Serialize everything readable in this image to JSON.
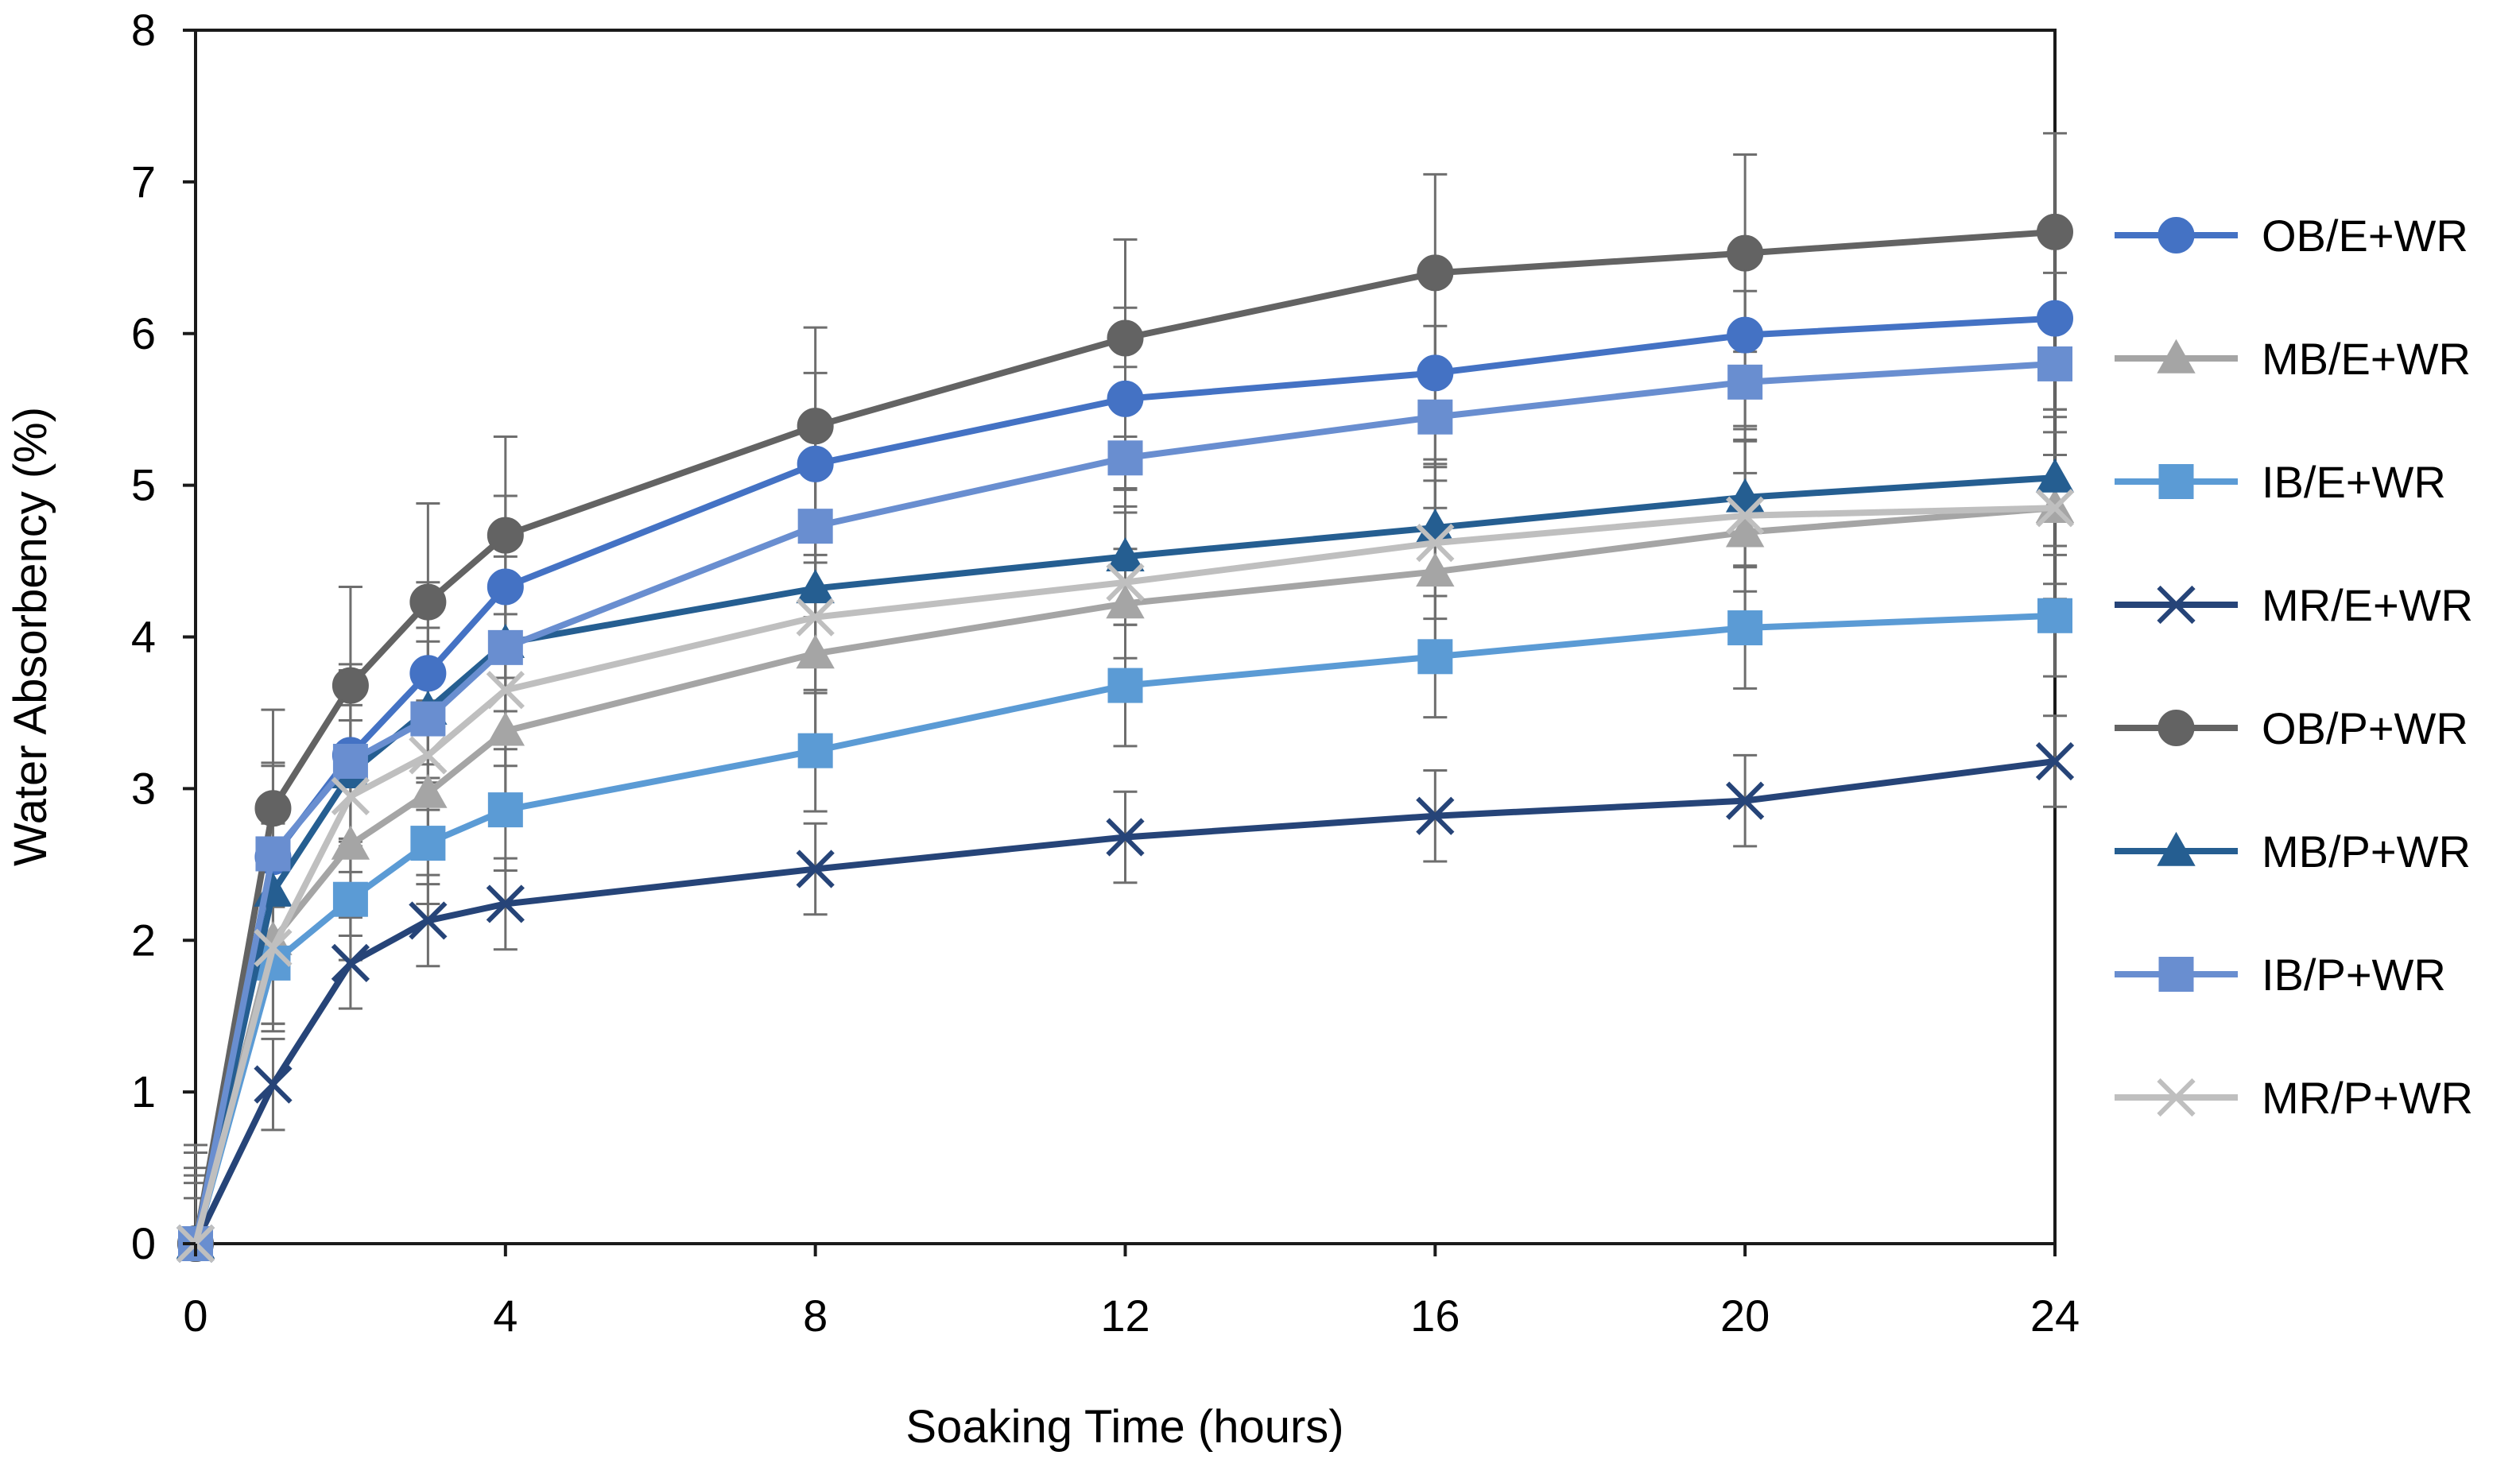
{
  "chart_data": {
    "type": "line",
    "title": "",
    "xlabel": "Soaking Time (hours)",
    "ylabel": "Water Absorbency (%)",
    "x": [
      0,
      1,
      2,
      3,
      4,
      8,
      12,
      16,
      20,
      24
    ],
    "xticks": [
      "0",
      "4",
      "8",
      "12",
      "16",
      "20",
      "24"
    ],
    "xtick_values": [
      0,
      4,
      8,
      12,
      16,
      20,
      24
    ],
    "yticks": [
      "0",
      "1",
      "2",
      "3",
      "4",
      "5",
      "6",
      "7",
      "8"
    ],
    "ytick_values": [
      0,
      1,
      2,
      3,
      4,
      5,
      6,
      7,
      8
    ],
    "xlim": [
      0,
      24
    ],
    "ylim": [
      0,
      8
    ],
    "grid": false,
    "legend_position": "right",
    "error_bars": true,
    "series": [
      {
        "name": "OB/E+WR",
        "color": "#4472C4",
        "marker": "circle",
        "values": [
          0,
          2.55,
          3.22,
          3.76,
          4.33,
          5.14,
          5.57,
          5.74,
          5.99,
          6.1
        ],
        "errors": [
          0.6,
          0.6,
          0.6,
          0.6,
          0.6,
          0.6,
          0.6,
          0.6,
          0.6,
          0.6
        ]
      },
      {
        "name": "MB/E+WR",
        "color": "#A5A5A5",
        "marker": "triangle",
        "values": [
          0,
          2.0,
          2.63,
          2.97,
          3.38,
          3.89,
          4.22,
          4.43,
          4.69,
          4.85
        ],
        "errors": [
          0.6,
          0.6,
          0.6,
          0.6,
          0.6,
          0.6,
          0.6,
          0.6,
          0.6,
          0.6
        ]
      },
      {
        "name": "IB/E+WR",
        "color": "#5B9BD5",
        "marker": "square",
        "values": [
          0,
          1.85,
          2.27,
          2.64,
          2.86,
          3.25,
          3.68,
          3.87,
          4.06,
          4.14
        ],
        "errors": [
          0.4,
          0.4,
          0.4,
          0.4,
          0.4,
          0.4,
          0.4,
          0.4,
          0.4,
          0.4
        ]
      },
      {
        "name": "MR/E+WR",
        "color": "#264478",
        "marker": "x",
        "values": [
          0,
          1.05,
          1.85,
          2.13,
          2.24,
          2.47,
          2.68,
          2.82,
          2.92,
          3.18
        ],
        "errors": [
          0.3,
          0.3,
          0.3,
          0.3,
          0.3,
          0.3,
          0.3,
          0.3,
          0.3,
          0.3
        ]
      },
      {
        "name": "OB/P+WR",
        "color": "#636363",
        "marker": "circle",
        "values": [
          0,
          2.87,
          3.68,
          4.23,
          4.67,
          5.39,
          5.97,
          6.4,
          6.53,
          6.67
        ],
        "errors": [
          0.65,
          0.65,
          0.65,
          0.65,
          0.65,
          0.65,
          0.65,
          0.65,
          0.65,
          0.65
        ]
      },
      {
        "name": "MB/P+WR",
        "color": "#255E91",
        "marker": "triangle",
        "values": [
          0,
          2.32,
          3.1,
          3.52,
          3.96,
          4.32,
          4.53,
          4.72,
          4.92,
          5.05
        ],
        "errors": [
          0.45,
          0.45,
          0.45,
          0.45,
          0.45,
          0.45,
          0.45,
          0.45,
          0.45,
          0.45
        ]
      },
      {
        "name": "IB/P+WR",
        "color": "#698ED0",
        "marker": "square",
        "values": [
          0,
          2.57,
          3.18,
          3.46,
          3.93,
          4.73,
          5.18,
          5.45,
          5.68,
          5.8
        ],
        "errors": [
          0.6,
          0.6,
          0.6,
          0.6,
          0.6,
          0.6,
          0.6,
          0.6,
          0.6,
          0.6
        ]
      },
      {
        "name": "MR/P+WR",
        "color": "#BFBFBF",
        "marker": "x",
        "values": [
          0,
          1.95,
          2.95,
          3.22,
          3.65,
          4.13,
          4.36,
          4.62,
          4.8,
          4.85
        ],
        "errors": [
          0.5,
          0.5,
          0.5,
          0.5,
          0.5,
          0.5,
          0.5,
          0.5,
          0.5,
          0.5
        ]
      }
    ]
  }
}
